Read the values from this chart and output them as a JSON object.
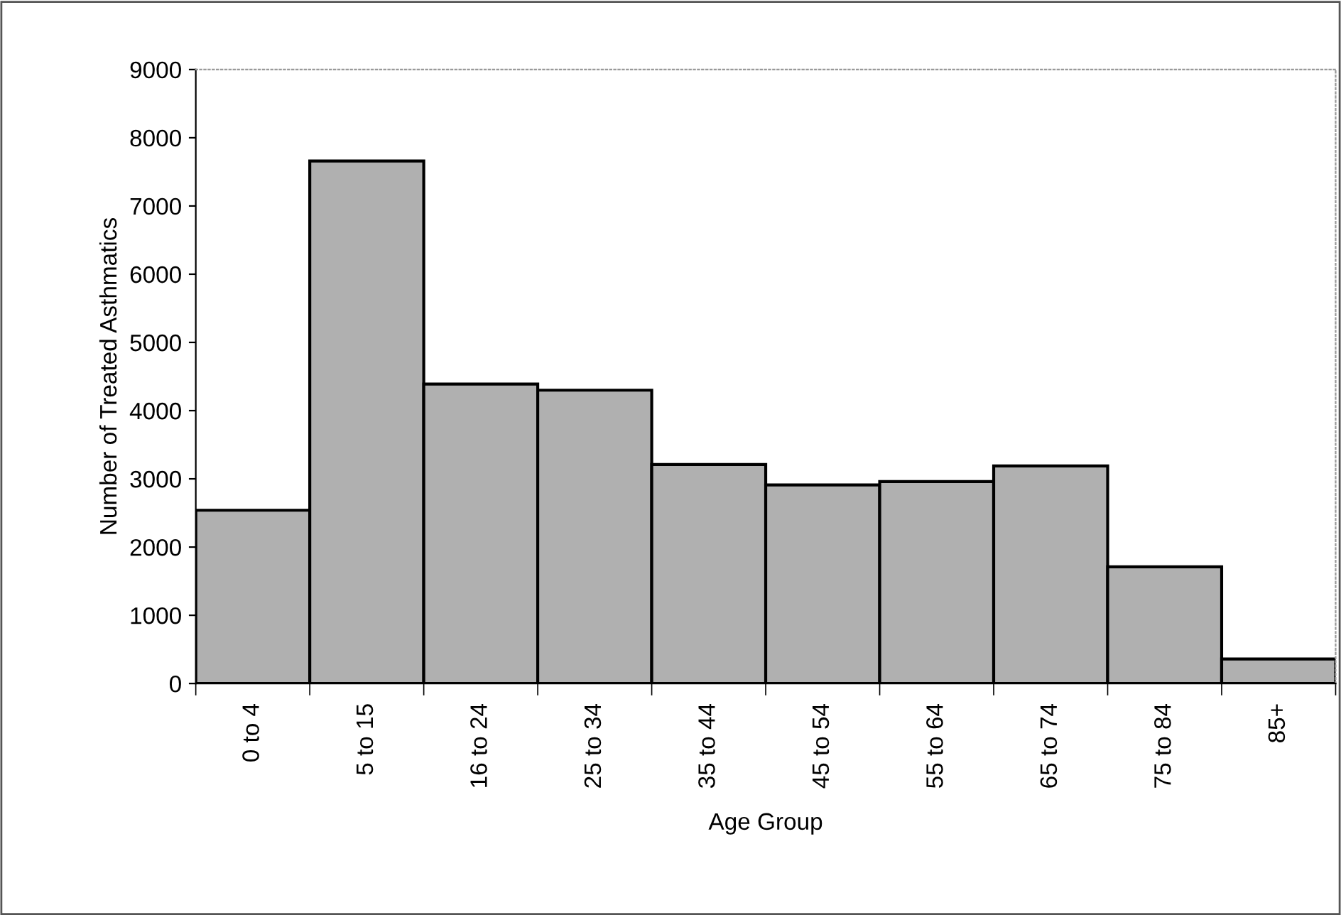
{
  "chart_data": {
    "type": "bar",
    "xlabel": "Age Group",
    "ylabel": "Number of Treated Asthmatics",
    "categories": [
      "0 to 4",
      "5 to 15",
      "16 to 24",
      "25 to 34",
      "35 to 44",
      "45 to 54",
      "55 to 64",
      "65 to 74",
      "75 to 84",
      "85+"
    ],
    "values": [
      2540,
      7660,
      4390,
      4300,
      3210,
      2910,
      2960,
      3190,
      1710,
      360
    ],
    "color": "#b0b0b0",
    "ylim": [
      0,
      9000
    ],
    "yticks": [
      0,
      1000,
      2000,
      3000,
      4000,
      5000,
      6000,
      7000,
      8000,
      9000
    ],
    "grid": false
  }
}
